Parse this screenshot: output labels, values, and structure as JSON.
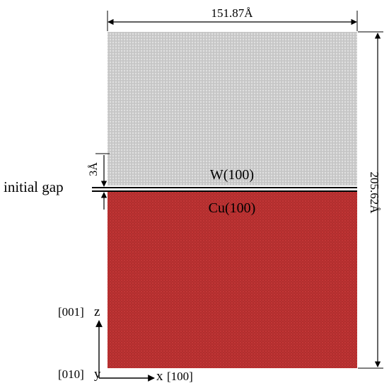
{
  "width_label": "151.87Å",
  "height_label": "205.62Å",
  "gap_label": "3Å",
  "initial_gap_label": "initial gap",
  "top_slab_label": "W(100)",
  "bottom_slab_label": "Cu(100)",
  "axes": {
    "z_dir": "[001]",
    "z_name": "z",
    "y_dir": "[010]",
    "y_name": "y",
    "x_name": "x",
    "x_dir": "[100]"
  },
  "colors": {
    "w_atoms": "#b9b9b9",
    "w_background": "#e6e6e6",
    "cu_atoms": "#b42a2a",
    "cu_background": "#c43a3a",
    "interface": "#000000"
  }
}
